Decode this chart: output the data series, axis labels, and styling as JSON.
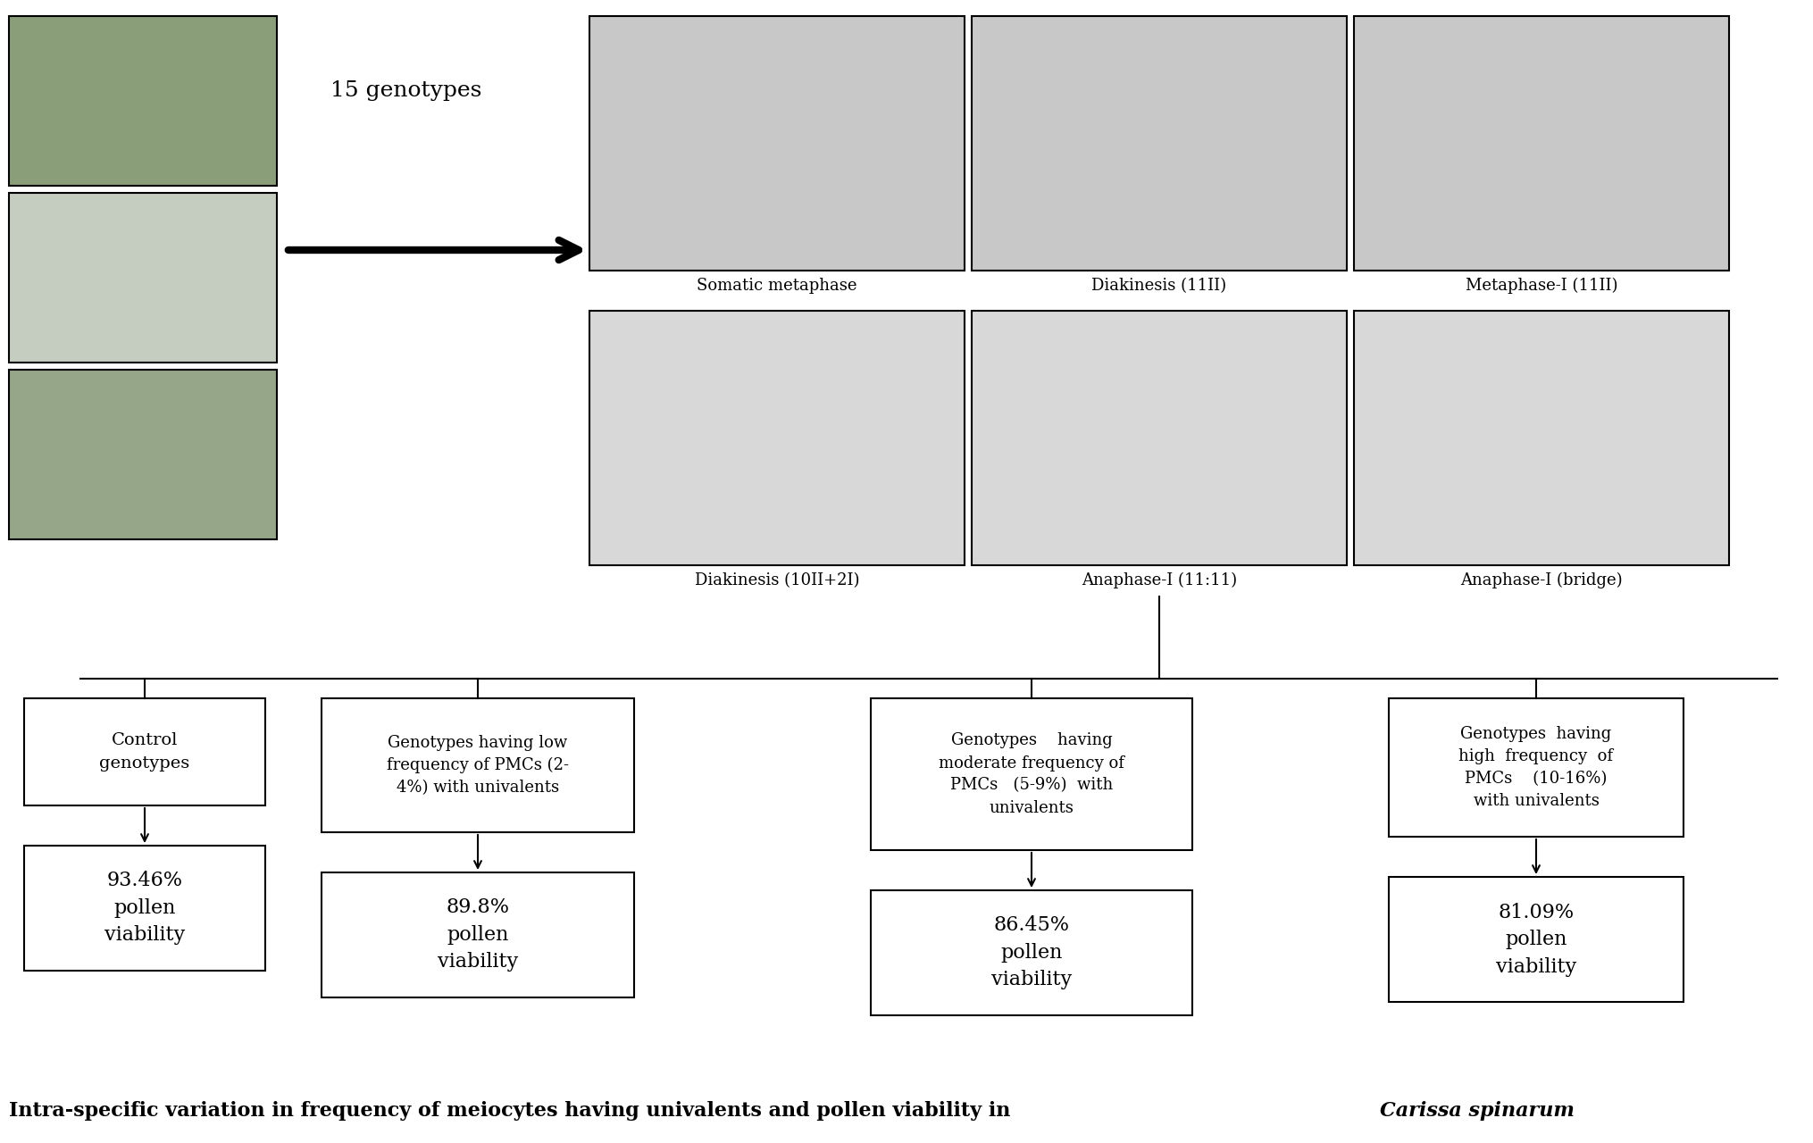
{
  "bg_color": "#ffffff",
  "micro_labels_top": [
    "Somatic metaphase",
    "Diakinesis (11II)",
    "Metaphase-I (11II)"
  ],
  "micro_labels_bot": [
    "Diakinesis (10II+2I)",
    "Anaphase-I (11:11)",
    "Anaphase-I (bridge)"
  ],
  "genotypes_text": "15 genotypes",
  "box1_top": "Control\ngenotypes",
  "box2_top": "Genotypes having low\nfrequency of PMCs (2-\n4%) with univalents",
  "box3_top": "Genotypes    having\nmoderate frequency of\nPMCs   (5-9%)  with\nunivalents",
  "box4_top": "Genotypes  having\nhigh  frequency  of\nPMCs    (10-16%)\nwith univalents",
  "box1_bottom": "93.46%\npollen\nviability",
  "box2_bottom": "89.8%\npollen\nviability",
  "box3_bottom": "86.45%\npollen\nviability",
  "box4_bottom": "81.09%\npollen\nviability",
  "caption_main": "Intra-specific variation in frequency of meiocytes having univalents and pollen viability in ",
  "caption_italic": "Carissa spinarum",
  "photo_colors": [
    "#8a9e7a",
    "#c5ccc0",
    "#96a688"
  ],
  "micro_color_top": "#c8c8c8",
  "micro_color_bot": "#d8d8d8"
}
